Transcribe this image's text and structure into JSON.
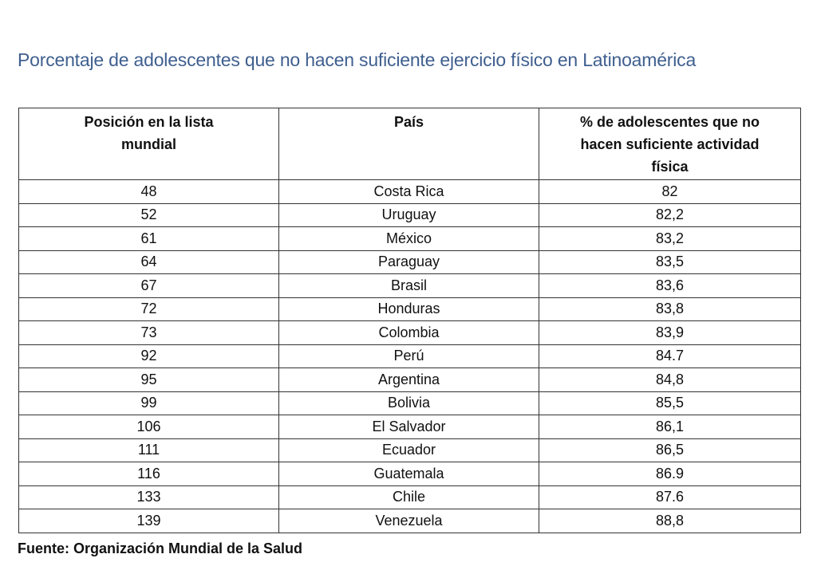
{
  "title": "Porcentaje de adolescentes que no hacen suficiente ejercicio físico en Latinoamérica",
  "table": {
    "headers": [
      "Posición en la lista mundial",
      "País",
      "% de adolescentes que no hacen suficiente actividad física"
    ],
    "rows": [
      [
        "48",
        "Costa Rica",
        "82"
      ],
      [
        "52",
        "Uruguay",
        "82,2"
      ],
      [
        "61",
        "México",
        "83,2"
      ],
      [
        "64",
        "Paraguay",
        "83,5"
      ],
      [
        "67",
        "Brasil",
        "83,6"
      ],
      [
        "72",
        "Honduras",
        "83,8"
      ],
      [
        "73",
        "Colombia",
        "83,9"
      ],
      [
        "92",
        "Perú",
        "84.7"
      ],
      [
        "95",
        "Argentina",
        "84,8"
      ],
      [
        "99",
        "Bolivia",
        "85,5"
      ],
      [
        "106",
        "El Salvador",
        "86,1"
      ],
      [
        "111",
        "Ecuador",
        "86,5"
      ],
      [
        "116",
        "Guatemala",
        "86.9"
      ],
      [
        "133",
        "Chile",
        "87.6"
      ],
      [
        "139",
        "Venezuela",
        "88,8"
      ]
    ]
  },
  "source": "Fuente: Organización Mundial de la Salud",
  "colors": {
    "title": "#3f5f8f",
    "border": "#333333"
  }
}
